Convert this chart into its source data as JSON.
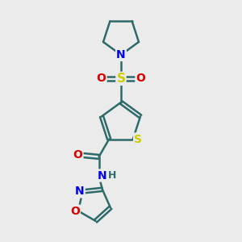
{
  "bg_color": "#ebebeb",
  "bond_color": "#2d6b6b",
  "bond_width": 1.8,
  "atom_colors": {
    "N": "#0000ee",
    "O": "#dd0000",
    "S_yellow": "#cccc00",
    "C": "#2d6b6b",
    "H": "#2d6b6b"
  },
  "font_size": 10,
  "fig_width": 3.0,
  "fig_height": 3.0,
  "dpi": 100,
  "xlim": [
    0.5,
    4.5
  ],
  "ylim": [
    0.0,
    7.0
  ]
}
